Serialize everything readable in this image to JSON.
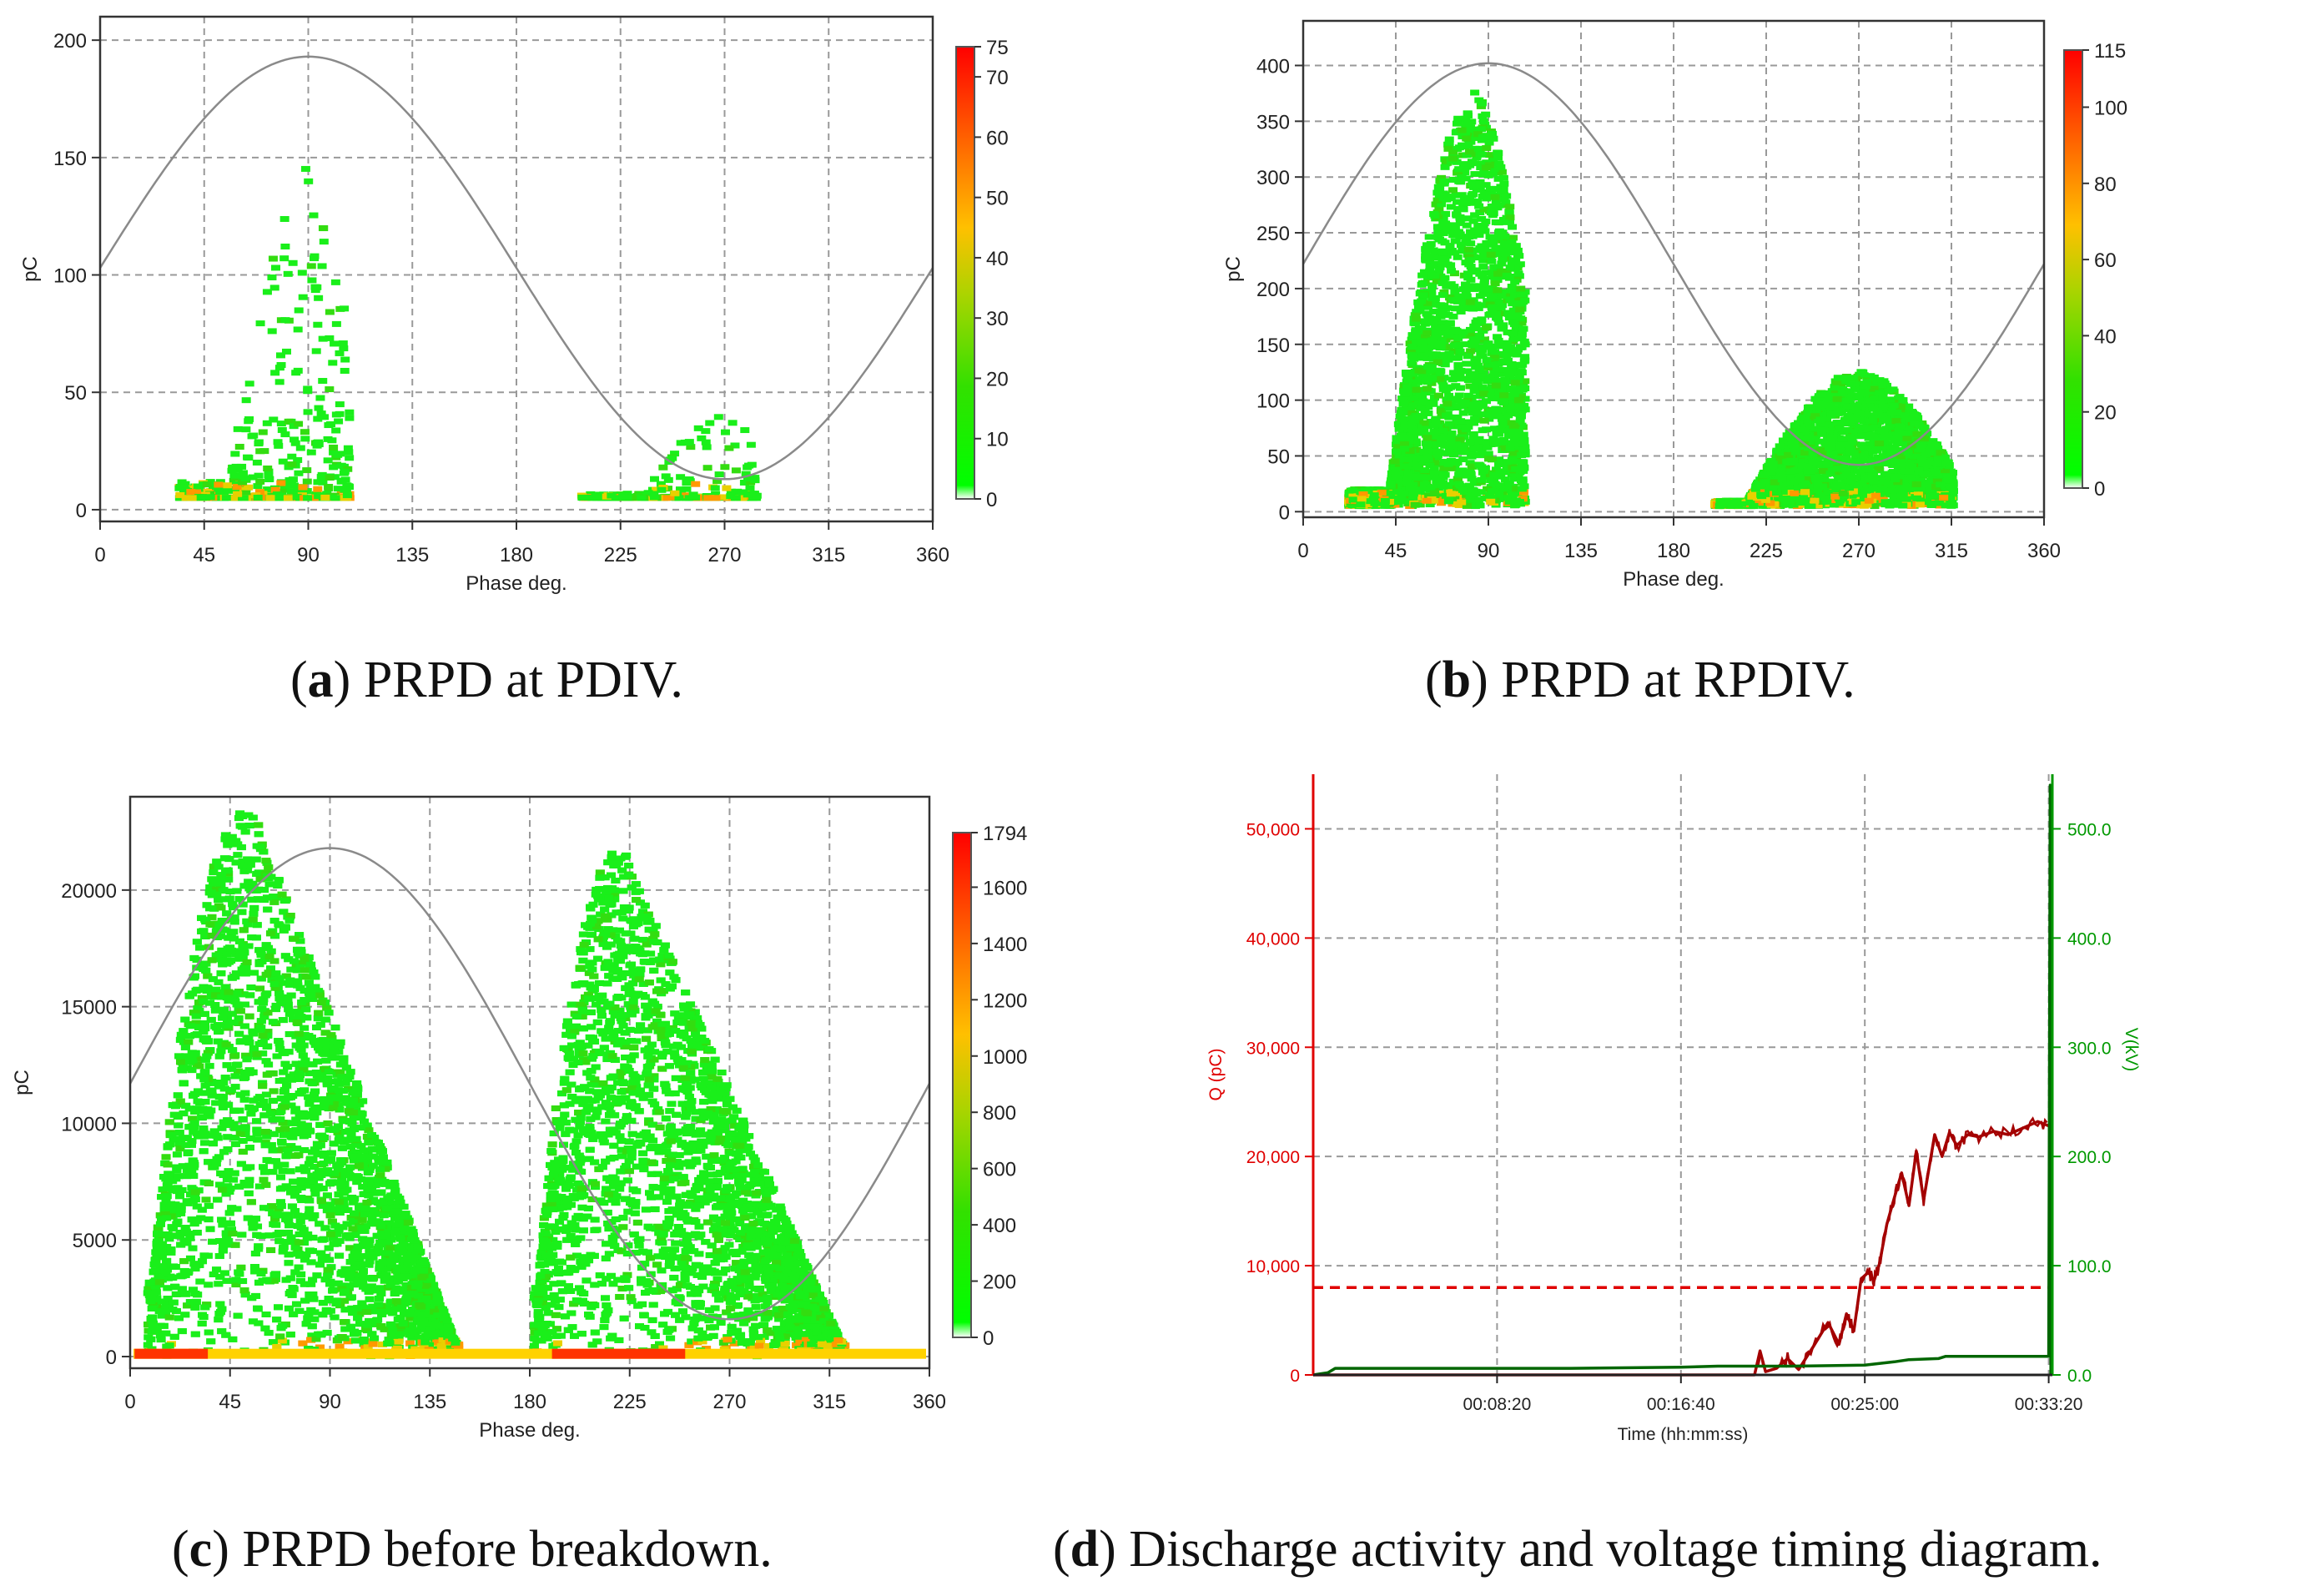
{
  "chart_data": [
    {
      "id": "a",
      "type": "scatter",
      "title": "",
      "caption_letter": "a",
      "caption_text": "PRPD at PDIV.",
      "xlabel": "Phase deg.",
      "ylabel": "pC",
      "xlim": [
        0,
        360
      ],
      "ylim": [
        -5,
        210
      ],
      "xticks": [
        0,
        45,
        90,
        135,
        180,
        225,
        270,
        315,
        360
      ],
      "yticks": [
        0,
        50,
        100,
        150,
        200
      ],
      "colorbar": {
        "min": 0,
        "max": 75,
        "ticks": [
          0,
          10,
          20,
          30,
          40,
          50,
          60,
          70,
          75
        ]
      },
      "sine": {
        "offset": 103,
        "amplitude": 90
      },
      "clusters": [
        {
          "x0": 34,
          "x1": 108,
          "ymin": 5,
          "ymax": 148,
          "peak_x": 88,
          "density": "medium"
        },
        {
          "x0": 208,
          "x1": 285,
          "ymin": 5,
          "ymax": 42,
          "peak_x": 268,
          "density": "low"
        }
      ]
    },
    {
      "id": "b",
      "type": "scatter",
      "title": "",
      "caption_letter": "b",
      "caption_text": "PRPD at RPDIV.",
      "xlabel": "Phase deg.",
      "ylabel": "pC",
      "xlim": [
        0,
        360
      ],
      "ylim": [
        -5,
        440
      ],
      "xticks": [
        0,
        45,
        90,
        135,
        180,
        225,
        270,
        315,
        360
      ],
      "yticks": [
        0,
        50,
        100,
        150,
        200,
        250,
        300,
        350,
        400
      ],
      "colorbar": {
        "min": 0,
        "max": 115,
        "ticks": [
          0,
          20,
          40,
          60,
          80,
          100,
          115
        ]
      },
      "sine": {
        "offset": 222,
        "amplitude": 180
      },
      "clusters": [
        {
          "x0": 22,
          "x1": 108,
          "ymin": 5,
          "ymax": 380,
          "peak_x": 82,
          "density": "high"
        },
        {
          "x0": 200,
          "x1": 316,
          "ymin": 5,
          "ymax": 128,
          "peak_x": 270,
          "density": "high"
        }
      ]
    },
    {
      "id": "c",
      "type": "scatter",
      "title": "",
      "caption_letter": "c",
      "caption_text": "PRPD before breakdown.",
      "xlabel": "Phase deg.",
      "ylabel": "pC",
      "xlim": [
        0,
        360
      ],
      "ylim": [
        -500,
        24000
      ],
      "xticks": [
        0,
        45,
        90,
        135,
        180,
        225,
        270,
        315,
        360
      ],
      "yticks": [
        0,
        5000,
        10000,
        15000,
        20000
      ],
      "colorbar": {
        "min": 0,
        "max": 1794,
        "ticks": [
          0,
          200,
          400,
          600,
          800,
          1000,
          1200,
          1400,
          1600,
          1794
        ]
      },
      "sine": {
        "offset": 11700,
        "amplitude": 10100
      },
      "clusters": [
        {
          "x0": 8,
          "x1": 148,
          "ymin": 0,
          "ymax": 23500,
          "peak_x": 55,
          "density": "very-high"
        },
        {
          "x0": 182,
          "x1": 322,
          "ymin": 0,
          "ymax": 21800,
          "peak_x": 222,
          "density": "very-high"
        }
      ]
    },
    {
      "id": "d",
      "type": "line",
      "title": "",
      "caption_letter": "d",
      "caption_text": "Discharge activity and voltage timing diagram.",
      "xlabel": "Time (hh:mm:ss)",
      "ylabel": "Q (pC)",
      "ylabel_right": "V(kV)",
      "xticklabels": [
        "00:08:20",
        "00:16:40",
        "00:25:00",
        "00:33:20"
      ],
      "xtick_seconds": [
        500,
        1000,
        1500,
        2000
      ],
      "xlim": [
        0,
        2010
      ],
      "ylim": [
        0,
        55000
      ],
      "ylim_right": [
        0,
        550
      ],
      "yticklabels": [
        "0",
        "10,000",
        "20,000",
        "30,000",
        "40,000",
        "50,000"
      ],
      "yticks": [
        0,
        10000,
        20000,
        30000,
        40000,
        50000
      ],
      "yticklabels_right": [
        "0.0",
        "100.0",
        "200.0",
        "300.0",
        "400.0",
        "500.0"
      ],
      "yticks_right": [
        0,
        100,
        200,
        300,
        400,
        500
      ],
      "threshold_pC": 8000,
      "colors": {
        "charge": "#a40000",
        "voltage": "#006600",
        "threshold": "#e00000",
        "left_axis": "#e00000",
        "right_axis": "#009900"
      },
      "series": [
        {
          "name": "Q (pC)",
          "axis": "left",
          "x": [
            0,
            1200,
            1215,
            1230,
            1260,
            1290,
            1320,
            1360,
            1400,
            1430,
            1450,
            1470,
            1490,
            1510,
            1525,
            1540,
            1560,
            1580,
            1600,
            1620,
            1640,
            1660,
            1690,
            1710,
            1730,
            1750,
            1780,
            1810,
            1850,
            1890,
            1930,
            1970,
            2000
          ],
          "y": [
            0,
            0,
            2200,
            300,
            600,
            1500,
            500,
            2600,
            4800,
            2800,
            5600,
            4000,
            8800,
            9400,
            8600,
            10200,
            13800,
            16200,
            18500,
            15500,
            20500,
            16000,
            22000,
            20000,
            22200,
            21000,
            22000,
            21800,
            22300,
            22000,
            22600,
            23200,
            22800
          ]
        },
        {
          "name": "V(kV)",
          "axis": "right",
          "x": [
            0,
            40,
            60,
            400,
            700,
            1000,
            1100,
            1300,
            1500,
            1580,
            1620,
            1700,
            1720,
            2000,
            2004,
            2006
          ],
          "y": [
            0,
            2,
            6,
            6,
            6,
            7,
            8,
            8,
            9,
            12,
            14,
            15,
            17,
            17,
            540,
            0
          ]
        }
      ]
    }
  ]
}
